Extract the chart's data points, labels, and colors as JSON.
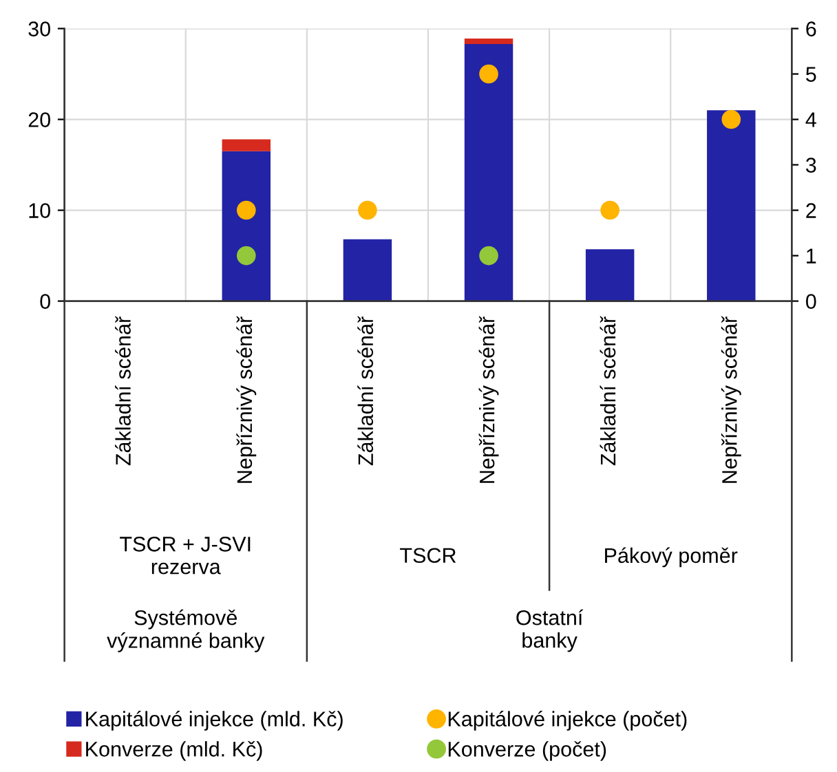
{
  "chart_data": {
    "type": "bar",
    "stacked": true,
    "categories": [
      "Základní scénář",
      "Nepříznivý scénář",
      "Základní scénář",
      "Nepříznivý scénář",
      "Základní scénář",
      "Nepříznivý scénář"
    ],
    "series": [
      {
        "name": "Kapitálové injekce (mld. Kč)",
        "color": "#2323a6",
        "values": [
          0,
          16.5,
          6.8,
          28.3,
          5.7,
          21.0
        ]
      },
      {
        "name": "Konverze (mld. Kč)",
        "color": "#d62a1e",
        "values": [
          0,
          1.3,
          0,
          0.6,
          0,
          0
        ]
      },
      {
        "name": "Kapitálové injekce (počet)",
        "type": "scatter",
        "axis": "y2",
        "color": "#ffb400",
        "values": [
          null,
          2,
          2,
          5,
          2,
          4
        ]
      },
      {
        "name": "Konverze (počet)",
        "type": "scatter",
        "axis": "y2",
        "color": "#93c83a",
        "values": [
          null,
          1,
          null,
          1,
          null,
          null
        ]
      }
    ],
    "ylim": [
      0,
      30
    ],
    "yticks": [
      0,
      10,
      20,
      30
    ],
    "y2lim": [
      0,
      6
    ],
    "y2ticks": [
      0,
      1,
      2,
      3,
      4,
      5,
      6
    ],
    "grid": true,
    "legend": "bottom",
    "marker": "circle",
    "annotations": [
      "TSCR + J-SVI\nrezerva",
      "TSCR",
      "Pákový poměr",
      "Systémově\nvýznamné banky",
      "Ostatní\nbanky"
    ]
  }
}
